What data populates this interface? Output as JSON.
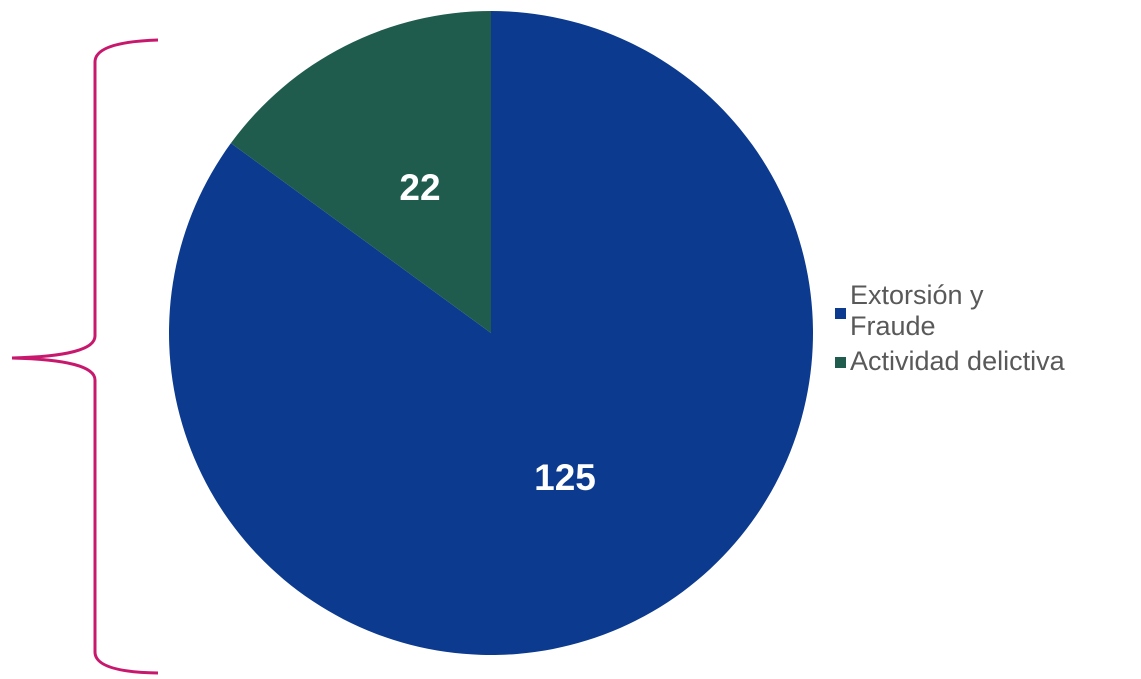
{
  "chart_data": {
    "type": "pie",
    "categories": [
      "Extorsión y Fraude",
      "Actividad delictiva"
    ],
    "values": [
      125,
      22
    ],
    "data_labels": [
      "125",
      "22"
    ],
    "colors": [
      "#0B3A8E",
      "#205C4E"
    ],
    "legend_position": "right",
    "title": ""
  },
  "legend": {
    "items": [
      {
        "label": "Extorsión y Fraude",
        "color": "#0B3A8E"
      },
      {
        "label": "Actividad delictiva",
        "color": "#205C4E"
      }
    ]
  },
  "brace": {
    "color": "#C8186E"
  }
}
